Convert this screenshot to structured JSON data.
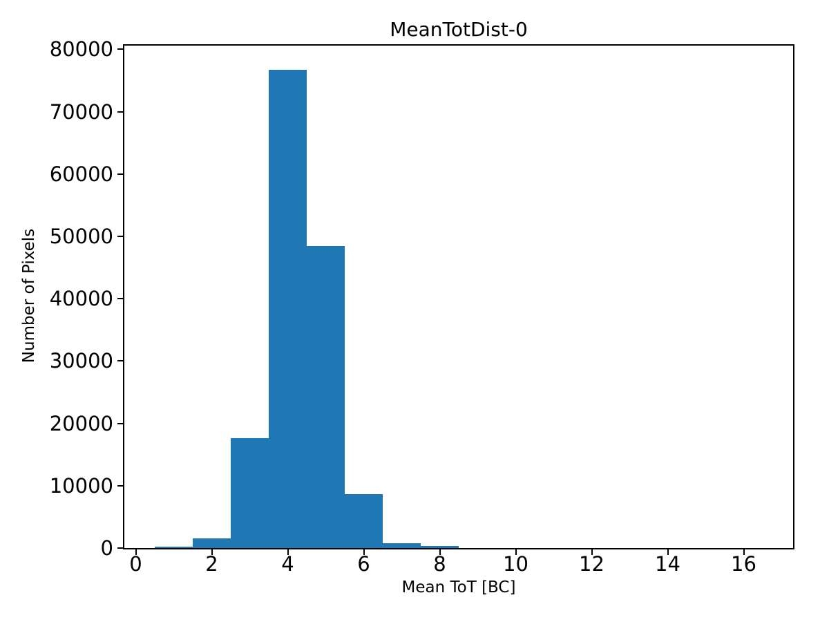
{
  "figure": {
    "background_color": "#ffffff",
    "spine_color": "#000000",
    "text_color": "#000000"
  },
  "chart_data": {
    "type": "bar",
    "subtype": "histogram",
    "title": "MeanTotDist-0",
    "xlabel": "Mean ToT [BC]",
    "ylabel": "Number of Pixels",
    "bar_color": "#1f77b4",
    "grid": false,
    "legend": null,
    "xlim": [
      -0.3,
      17.3
    ],
    "ylim": [
      0,
      80600
    ],
    "xticks": [
      0,
      2,
      4,
      6,
      8,
      10,
      12,
      14,
      16
    ],
    "yticks": [
      0,
      10000,
      20000,
      30000,
      40000,
      50000,
      60000,
      70000,
      80000
    ],
    "bin_edges": [
      0.5,
      1.5,
      2.5,
      3.5,
      4.5,
      5.5,
      6.5,
      7.5,
      8.5,
      9.5,
      10.5,
      11.5,
      12.5,
      13.5,
      14.5,
      15.5,
      16.5
    ],
    "counts": [
      220,
      1600,
      17600,
      76700,
      48400,
      8700,
      800,
      330,
      0,
      0,
      0,
      0,
      0,
      0,
      0,
      0
    ]
  }
}
